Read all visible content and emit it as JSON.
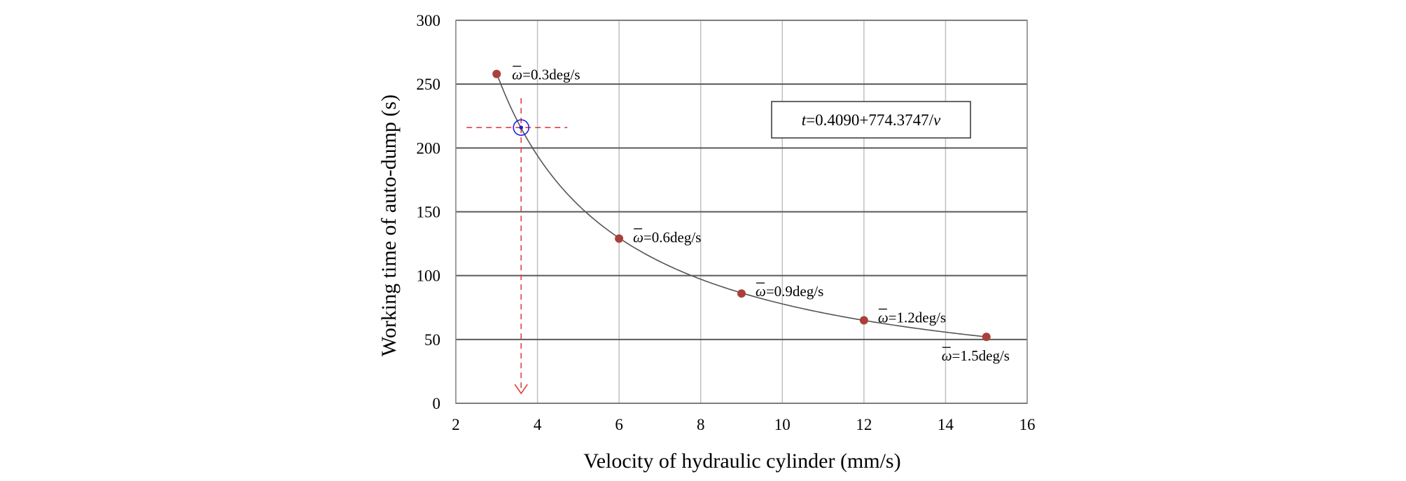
{
  "chart_data": {
    "type": "scatter",
    "xlabel": "Velocity of hydraulic cylinder (mm/s)",
    "ylabel": "Working time of auto-dump (s)",
    "xlim": [
      2,
      16
    ],
    "ylim": [
      0,
      300
    ],
    "xticks": [
      2,
      4,
      6,
      8,
      10,
      12,
      14,
      16
    ],
    "yticks": [
      0,
      50,
      100,
      150,
      200,
      250,
      300
    ],
    "grid": true,
    "series": [
      {
        "points": [
          {
            "x": 3,
            "y": 258,
            "label": "=0.3deg/s",
            "symbol": "ω"
          },
          {
            "x": 6,
            "y": 129,
            "label": "=0.6deg/s",
            "symbol": "ω"
          },
          {
            "x": 9,
            "y": 86,
            "label": "=0.9deg/s",
            "symbol": "ω"
          },
          {
            "x": 12,
            "y": 65,
            "label": "=1.2deg/s",
            "symbol": "ω"
          },
          {
            "x": 15,
            "y": 52,
            "label": "=1.5deg/s",
            "symbol": "ω"
          }
        ],
        "color": "#a9403a"
      }
    ],
    "fit_curve": {
      "a": 0.409,
      "b": 774.3747,
      "x_range": [
        3,
        15
      ],
      "color": "#555555"
    },
    "equation": {
      "var": "t",
      "rest": "=0.4090+774.3747/",
      "tail": "v"
    },
    "highlight": {
      "x": 3.6,
      "y": 216,
      "color": "#2020e0",
      "guide_color": "#e04040"
    }
  }
}
